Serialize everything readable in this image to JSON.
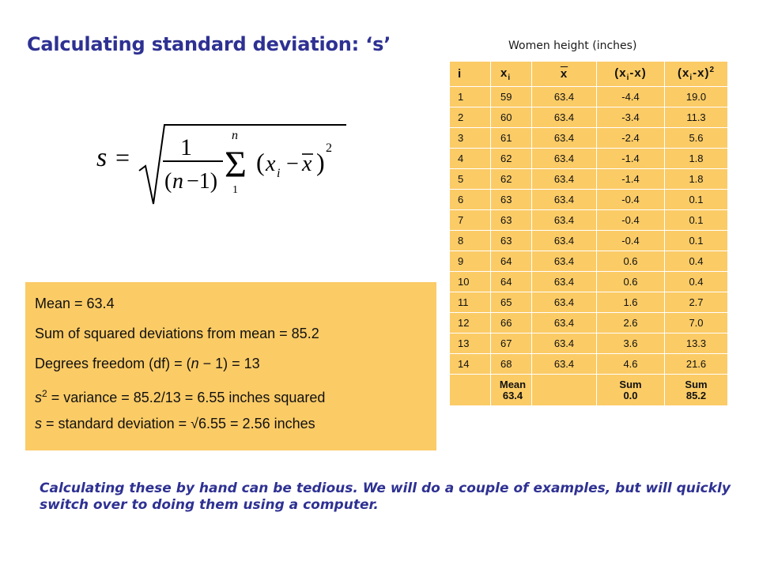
{
  "slide": {
    "title": "Calculating standard deviation:  ‘s’",
    "table_caption": "Women height (inches)"
  },
  "summary": {
    "mean_line": "Mean  =  63.4",
    "sum_line": "Sum of squared deviations from mean = 85.2",
    "df_prefix": "Degrees freedom (df) = (",
    "df_n": "n",
    "df_suffix": " − 1) = 13",
    "var_s": "s",
    "var_exp": "2",
    "var_suffix": " = variance =  85.2/13 = 6.55 inches squared",
    "sd_s": "s",
    "sd_suffix": " = standard deviation = √6.55 = 2.56 inches"
  },
  "table": {
    "headers": [
      "i",
      "x",
      "i",
      "x",
      "(x",
      "i",
      "-x)",
      "(x",
      "i",
      "-x)",
      "2"
    ],
    "rows": [
      [
        "1",
        "59",
        "63.4",
        "-4.4",
        "19.0"
      ],
      [
        "2",
        "60",
        "63.4",
        "-3.4",
        "11.3"
      ],
      [
        "3",
        "61",
        "63.4",
        "-2.4",
        "5.6"
      ],
      [
        "4",
        "62",
        "63.4",
        "-1.4",
        "1.8"
      ],
      [
        "5",
        "62",
        "63.4",
        "-1.4",
        "1.8"
      ],
      [
        "6",
        "63",
        "63.4",
        "-0.4",
        "0.1"
      ],
      [
        "7",
        "63",
        "63.4",
        "-0.4",
        "0.1"
      ],
      [
        "8",
        "63",
        "63.4",
        "-0.4",
        "0.1"
      ],
      [
        "9",
        "64",
        "63.4",
        "0.6",
        "0.4"
      ],
      [
        "10",
        "64",
        "63.4",
        "0.6",
        "0.4"
      ],
      [
        "11",
        "65",
        "63.4",
        "1.6",
        "2.7"
      ],
      [
        "12",
        "66",
        "63.4",
        "2.6",
        "7.0"
      ],
      [
        "13",
        "67",
        "63.4",
        "3.6",
        "13.3"
      ],
      [
        "14",
        "68",
        "63.4",
        "4.6",
        "21.6"
      ]
    ],
    "footer": {
      "mean_label": "Mean",
      "mean_value": "63.4",
      "sum_label": "Sum",
      "sum_dev": "0.0",
      "sum_sq": "85.2"
    }
  },
  "formula": {
    "lhs": "s",
    "eq": "=",
    "one": "1",
    "den_open": "(",
    "den_n": "n",
    "den_rest": "−1)",
    "sigma": "Σ",
    "upper": "n",
    "lower": "1",
    "open": "(",
    "xi": "x",
    "i": "i",
    "minus": "−",
    "xbar": "x",
    "close": ")",
    "exp": "2"
  },
  "note": "Calculating these by hand can be tedious. We will do a couple of examples, but will quickly switch over to doing them using a computer.",
  "colors": {
    "title": "#2e3192",
    "box_fill": "#fbcb66"
  }
}
